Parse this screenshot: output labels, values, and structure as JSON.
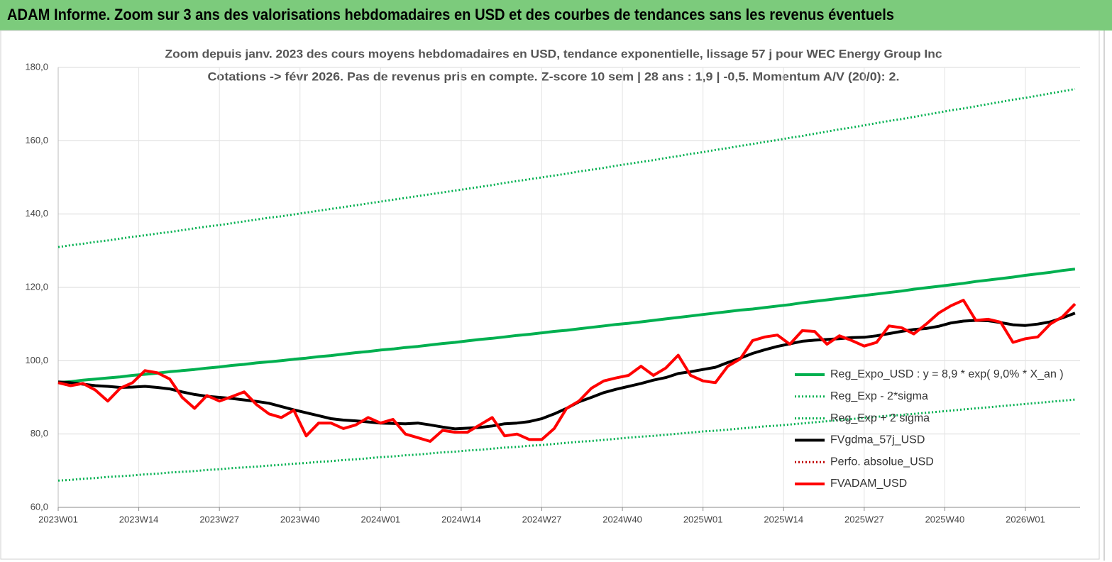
{
  "header_title": "ADAM Informe. Zoom sur 3 ans des valorisations hebdomadaires en USD et des courbes de tendances sans les revenus éventuels",
  "chart_data": {
    "type": "line",
    "title": "Zoom depuis janv. 2023 des cours moyens hebdomadaires en USD, tendance exponentielle, lissage 57 j pour WEC Energy Group Inc",
    "subtitle": "Cotations -> févr 2026. Pas de revenus pris en compte. Z-score 10 sem  | 28 ans : 1,9 | -0,5. Momentum A/V (20/0): 2.",
    "x": [
      "2023W01",
      "2023W03",
      "2023W05",
      "2023W07",
      "2023W09",
      "2023W11",
      "2023W13",
      "2023W15",
      "2023W17",
      "2023W19",
      "2023W21",
      "2023W23",
      "2023W25",
      "2023W27",
      "2023W29",
      "2023W31",
      "2023W33",
      "2023W35",
      "2023W37",
      "2023W39",
      "2023W41",
      "2023W43",
      "2023W45",
      "2023W47",
      "2023W49",
      "2023W51",
      "2024W01",
      "2024W03",
      "2024W05",
      "2024W07",
      "2024W09",
      "2024W11",
      "2024W13",
      "2024W15",
      "2024W17",
      "2024W19",
      "2024W21",
      "2024W23",
      "2024W25",
      "2024W27",
      "2024W29",
      "2024W31",
      "2024W33",
      "2024W35",
      "2024W37",
      "2024W39",
      "2024W41",
      "2024W43",
      "2024W45",
      "2024W47",
      "2024W49",
      "2024W51",
      "2025W01",
      "2025W03",
      "2025W05",
      "2025W07",
      "2025W09",
      "2025W11",
      "2025W13",
      "2025W15",
      "2025W17",
      "2025W19",
      "2025W21",
      "2025W23",
      "2025W25",
      "2025W27",
      "2025W29",
      "2025W31",
      "2025W33",
      "2025W35",
      "2025W37",
      "2025W39",
      "2025W41",
      "2025W43",
      "2025W45",
      "2025W47",
      "2025W49",
      "2025W51",
      "2026W01",
      "2026W03",
      "2026W05",
      "2026W07",
      "2026W09"
    ],
    "xticks": [
      "2023W01",
      "2023W14",
      "2023W27",
      "2023W40",
      "2024W01",
      "2024W14",
      "2024W27",
      "2024W40",
      "2025W01",
      "2025W14",
      "2025W27",
      "2025W40",
      "2026W01"
    ],
    "ylim": [
      60,
      180
    ],
    "yticks": [
      {
        "value": 60,
        "label": "60,0"
      },
      {
        "value": 80,
        "label": "80,0"
      },
      {
        "value": 100,
        "label": "100,0"
      },
      {
        "value": 120,
        "label": "120,0"
      },
      {
        "value": 140,
        "label": "140,0"
      },
      {
        "value": 160,
        "label": "160,0"
      },
      {
        "value": 180,
        "label": "180,0"
      }
    ],
    "grid": true,
    "legend": "right",
    "series": [
      {
        "name": "Reg_Expo_USD : y = 8,9 * exp( 9,0% *  X_an )",
        "color": "#00b050",
        "style": "solid",
        "values": [
          94.0,
          94.3,
          94.7,
          95.0,
          95.3,
          95.6,
          96.0,
          96.3,
          96.6,
          97.0,
          97.3,
          97.6,
          98.0,
          98.3,
          98.7,
          99.0,
          99.4,
          99.7,
          100.0,
          100.4,
          100.7,
          101.1,
          101.4,
          101.8,
          102.2,
          102.5,
          102.9,
          103.2,
          103.6,
          103.9,
          104.3,
          104.7,
          105.0,
          105.4,
          105.8,
          106.1,
          106.5,
          106.9,
          107.2,
          107.6,
          108.0,
          108.3,
          108.7,
          109.1,
          109.5,
          109.9,
          110.2,
          110.6,
          111.0,
          111.4,
          111.8,
          112.2,
          112.6,
          113.0,
          113.4,
          113.8,
          114.1,
          114.5,
          114.9,
          115.3,
          115.8,
          116.2,
          116.6,
          117.0,
          117.4,
          117.8,
          118.2,
          118.6,
          119.0,
          119.5,
          119.9,
          120.3,
          120.7,
          121.1,
          121.6,
          122.0,
          122.4,
          122.8,
          123.3,
          123.7,
          124.1,
          124.6,
          125.0
        ]
      },
      {
        "name": "Reg_Exp - 2*sigma",
        "color": "#00b050",
        "style": "dotted",
        "values": [
          67.3,
          67.5,
          67.8,
          68.0,
          68.3,
          68.5,
          68.7,
          69.0,
          69.2,
          69.5,
          69.7,
          69.9,
          70.2,
          70.4,
          70.7,
          70.9,
          71.1,
          71.4,
          71.6,
          71.9,
          72.1,
          72.4,
          72.6,
          72.9,
          73.1,
          73.4,
          73.7,
          73.9,
          74.2,
          74.4,
          74.7,
          75.0,
          75.2,
          75.5,
          75.7,
          76.0,
          76.3,
          76.5,
          76.8,
          77.0,
          77.3,
          77.6,
          77.9,
          78.1,
          78.4,
          78.7,
          79.0,
          79.3,
          79.5,
          79.8,
          80.1,
          80.4,
          80.7,
          80.9,
          81.2,
          81.5,
          81.8,
          82.1,
          82.3,
          82.6,
          82.9,
          83.2,
          83.5,
          83.8,
          84.1,
          84.4,
          84.7,
          85.0,
          85.2,
          85.5,
          85.8,
          86.1,
          86.4,
          86.7,
          87.0,
          87.3,
          87.6,
          87.9,
          88.2,
          88.5,
          88.8,
          89.1,
          89.4
        ]
      },
      {
        "name": "Reg_Exp + 2 sigma",
        "color": "#00b050",
        "style": "dotted",
        "values": [
          131.0,
          131.5,
          131.9,
          132.4,
          132.8,
          133.3,
          133.8,
          134.2,
          134.7,
          135.1,
          135.6,
          136.1,
          136.6,
          137.0,
          137.5,
          138.0,
          138.5,
          139.0,
          139.4,
          139.9,
          140.4,
          140.9,
          141.4,
          141.9,
          142.4,
          142.9,
          143.4,
          143.9,
          144.4,
          144.9,
          145.4,
          145.9,
          146.4,
          146.9,
          147.4,
          147.9,
          148.5,
          149.0,
          149.5,
          150.0,
          150.5,
          151.0,
          151.6,
          152.1,
          152.6,
          153.2,
          153.7,
          154.2,
          154.7,
          155.3,
          155.8,
          156.4,
          156.9,
          157.5,
          158.0,
          158.6,
          159.1,
          159.7,
          160.2,
          160.8,
          161.3,
          161.9,
          162.5,
          163.1,
          163.6,
          164.2,
          164.8,
          165.4,
          165.9,
          166.5,
          167.1,
          167.7,
          168.3,
          168.8,
          169.4,
          170.0,
          170.6,
          171.2,
          171.7,
          172.3,
          172.9,
          173.5,
          174.1
        ]
      },
      {
        "name": "FVgdma_57j_USD",
        "color": "#000000",
        "style": "solid",
        "values": [
          94.2,
          94.0,
          93.6,
          93.2,
          93.0,
          92.7,
          92.8,
          93.0,
          92.7,
          92.3,
          91.5,
          90.8,
          90.3,
          90.0,
          89.7,
          89.3,
          88.9,
          88.4,
          87.5,
          86.6,
          85.8,
          85.0,
          84.2,
          83.8,
          83.6,
          83.3,
          83.0,
          82.9,
          82.8,
          83.0,
          82.5,
          81.9,
          81.4,
          81.6,
          81.8,
          82.2,
          82.8,
          83.0,
          83.4,
          84.2,
          85.5,
          87.0,
          88.8,
          90.0,
          91.3,
          92.2,
          93.0,
          93.8,
          94.7,
          95.4,
          96.5,
          97.0,
          97.6,
          98.2,
          99.5,
          100.7,
          102.0,
          103.0,
          103.9,
          104.6,
          105.3,
          105.6,
          105.8,
          106.0,
          106.3,
          106.4,
          106.8,
          107.4,
          108.0,
          108.5,
          108.8,
          109.4,
          110.3,
          110.8,
          111.0,
          110.9,
          110.4,
          109.8,
          109.6,
          110.0,
          110.6,
          111.7,
          113.0
        ]
      },
      {
        "name": "Perfo. absolue_USD",
        "color": "#c00000",
        "style": "dotted",
        "values": [
          null,
          null,
          null,
          null,
          null,
          null,
          null,
          null,
          null,
          null,
          null,
          null,
          null,
          null,
          null,
          null,
          null,
          null,
          null,
          null,
          null,
          null,
          null,
          null,
          null,
          null,
          null,
          null,
          null,
          null,
          null,
          null,
          null,
          null,
          null,
          null,
          null,
          null,
          null,
          null,
          null,
          null,
          null,
          null,
          null,
          null,
          null,
          null,
          null,
          null,
          null,
          null,
          null,
          null,
          null,
          null,
          null,
          null,
          null,
          null,
          null,
          null,
          null,
          null,
          null,
          null,
          null,
          null,
          null,
          null,
          null,
          null,
          null,
          null,
          null,
          null,
          null,
          null,
          null,
          null,
          null,
          null,
          null
        ]
      },
      {
        "name": "FVADAM_USD",
        "color": "#ff0000",
        "style": "solid",
        "values": [
          94.0,
          93.2,
          93.8,
          92.0,
          89.0,
          92.5,
          94.0,
          97.3,
          96.7,
          95.0,
          90.0,
          87.0,
          90.5,
          89.0,
          90.2,
          91.5,
          88.0,
          85.5,
          84.5,
          86.5,
          79.5,
          83.0,
          83.0,
          81.5,
          82.5,
          84.5,
          83.0,
          84.0,
          80.0,
          79.0,
          78.0,
          81.0,
          80.5,
          80.5,
          82.5,
          84.5,
          79.5,
          80.0,
          78.5,
          78.5,
          81.5,
          87.0,
          89.0,
          92.5,
          94.5,
          95.3,
          96.0,
          98.5,
          96.0,
          98.0,
          101.5,
          96.0,
          94.5,
          94.0,
          98.5,
          100.5,
          105.5,
          106.5,
          107.0,
          104.5,
          108.2,
          108.0,
          104.5,
          106.8,
          105.5,
          104.0,
          105.0,
          109.5,
          109.0,
          107.3,
          110.0,
          113.0,
          115.0,
          116.5,
          111.0,
          111.3,
          110.5,
          105.0,
          106.0,
          106.5,
          110.0,
          112.0,
          115.5
        ]
      }
    ]
  }
}
